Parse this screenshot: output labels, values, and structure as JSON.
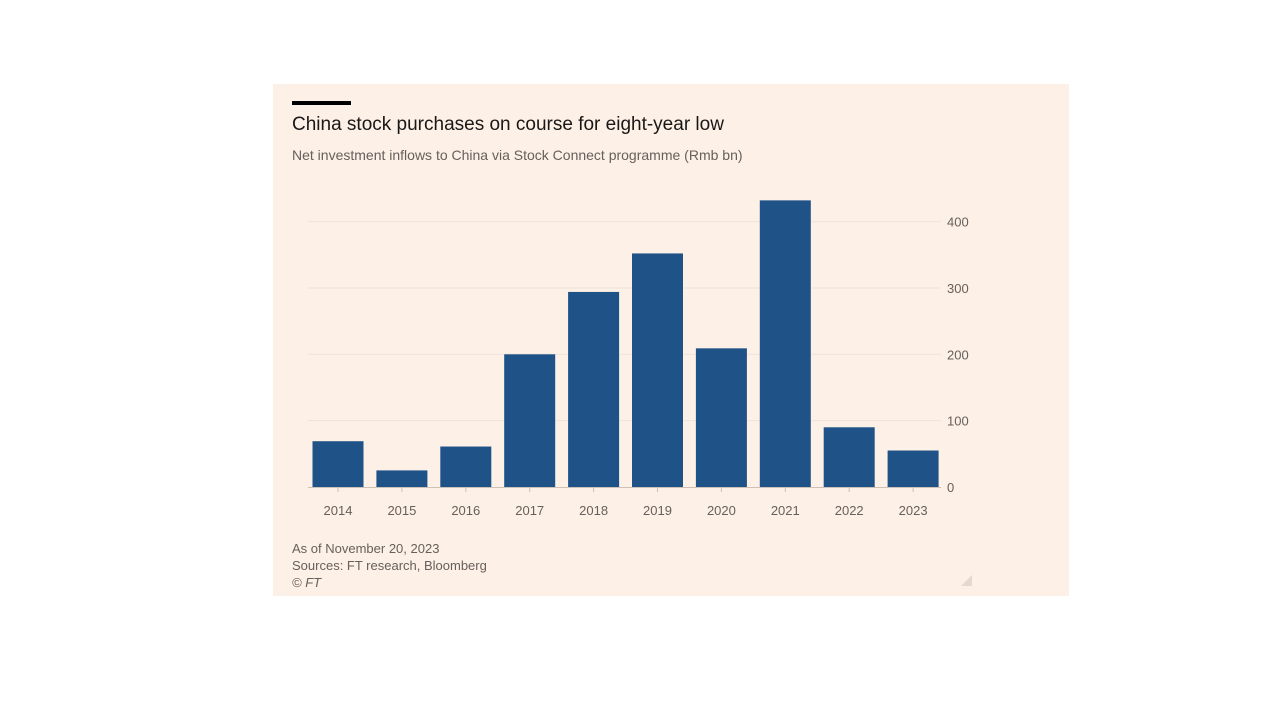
{
  "title": "China stock purchases on course for eight-year low",
  "subtitle": "Net investment inflows to China via Stock Connect programme (Rmb bn)",
  "footer": {
    "as_of": "As of November 20, 2023",
    "sources": "Sources: FT research, Bloomberg",
    "copyright": "© FT"
  },
  "colors": {
    "bar": "#1f5287",
    "background": "#fdf0e6",
    "grid": "#efe3d9",
    "tick_text": "#66605c"
  },
  "chart_data": {
    "type": "bar",
    "title": "China stock purchases on course for eight-year low",
    "subtitle": "Net investment inflows to China via Stock Connect programme (Rmb bn)",
    "categories": [
      "2014",
      "2015",
      "2016",
      "2017",
      "2018",
      "2019",
      "2020",
      "2021",
      "2022",
      "2023"
    ],
    "values": [
      69,
      25,
      61,
      200,
      294,
      352,
      209,
      432,
      90,
      55
    ],
    "ylim": [
      0,
      432
    ],
    "yticks": [
      0,
      100,
      200,
      300,
      400
    ],
    "ytick_labels": [
      "0",
      "100",
      "200",
      "300",
      "400"
    ],
    "y_axis_side": "right",
    "xlabel": "",
    "ylabel": "",
    "grid": true
  }
}
